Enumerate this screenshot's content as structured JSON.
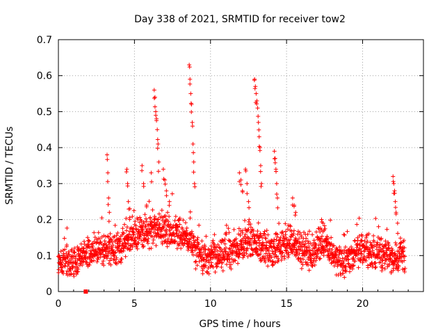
{
  "chart_data": {
    "type": "scatter",
    "title": "Day 338 of 2021, SRMTID for receiver tow2",
    "xlabel": "GPS time / hours",
    "ylabel": "SRMTID / TECUs",
    "xlim": [
      0,
      24
    ],
    "ylim": [
      0,
      0.7
    ],
    "xticks": [
      0,
      5,
      10,
      15,
      20
    ],
    "xtick_labels": [
      "0",
      "5",
      "10",
      "15",
      "20"
    ],
    "yticks": [
      0,
      0.1,
      0.2,
      0.3,
      0.4,
      0.5,
      0.6,
      0.7
    ],
    "ytick_labels": [
      "0",
      "0.1",
      "0.2",
      "0.3",
      "0.4",
      "0.5",
      "0.6",
      "0.7"
    ],
    "grid": true,
    "marker": "plus",
    "color": "#ff0000",
    "series": [
      {
        "name": "SRMTID",
        "baseline_profile": [
          [
            0.0,
            0.082
          ],
          [
            0.5,
            0.085
          ],
          [
            1.0,
            0.075
          ],
          [
            1.5,
            0.095
          ],
          [
            2.0,
            0.105
          ],
          [
            2.5,
            0.115
          ],
          [
            3.0,
            0.11
          ],
          [
            3.5,
            0.125
          ],
          [
            4.0,
            0.12
          ],
          [
            4.5,
            0.14
          ],
          [
            5.0,
            0.155
          ],
          [
            5.5,
            0.165
          ],
          [
            6.0,
            0.16
          ],
          [
            6.5,
            0.18
          ],
          [
            7.0,
            0.17
          ],
          [
            7.5,
            0.165
          ],
          [
            8.0,
            0.16
          ],
          [
            8.5,
            0.15
          ],
          [
            9.0,
            0.11
          ],
          [
            9.5,
            0.095
          ],
          [
            10.0,
            0.09
          ],
          [
            10.5,
            0.095
          ],
          [
            11.0,
            0.1
          ],
          [
            11.5,
            0.11
          ],
          [
            12.0,
            0.13
          ],
          [
            12.5,
            0.14
          ],
          [
            13.0,
            0.13
          ],
          [
            13.5,
            0.12
          ],
          [
            14.0,
            0.11
          ],
          [
            14.5,
            0.12
          ],
          [
            15.0,
            0.13
          ],
          [
            15.5,
            0.14
          ],
          [
            16.0,
            0.11
          ],
          [
            16.5,
            0.1
          ],
          [
            17.0,
            0.12
          ],
          [
            17.5,
            0.14
          ],
          [
            18.0,
            0.1
          ],
          [
            18.5,
            0.085
          ],
          [
            19.0,
            0.09
          ],
          [
            19.5,
            0.105
          ],
          [
            20.0,
            0.12
          ],
          [
            20.5,
            0.1
          ],
          [
            21.0,
            0.11
          ],
          [
            21.5,
            0.1
          ],
          [
            22.0,
            0.09
          ],
          [
            22.5,
            0.11
          ],
          [
            22.8,
            0.09
          ]
        ],
        "peaks": [
          [
            3.2,
            0.38
          ],
          [
            3.25,
            0.33
          ],
          [
            3.3,
            0.26
          ],
          [
            3.35,
            0.22
          ],
          [
            4.5,
            0.34
          ],
          [
            4.55,
            0.3
          ],
          [
            4.6,
            0.25
          ],
          [
            4.7,
            0.23
          ],
          [
            5.5,
            0.35
          ],
          [
            5.6,
            0.3
          ],
          [
            5.8,
            0.24
          ],
          [
            6.1,
            0.33
          ],
          [
            6.3,
            0.56
          ],
          [
            6.35,
            0.54
          ],
          [
            6.4,
            0.5
          ],
          [
            6.45,
            0.48
          ],
          [
            6.5,
            0.45
          ],
          [
            6.55,
            0.41
          ],
          [
            6.6,
            0.36
          ],
          [
            6.9,
            0.34
          ],
          [
            7.0,
            0.31
          ],
          [
            7.1,
            0.28
          ],
          [
            7.3,
            0.25
          ],
          [
            8.6,
            0.63
          ],
          [
            8.65,
            0.59
          ],
          [
            8.7,
            0.55
          ],
          [
            8.75,
            0.52
          ],
          [
            8.8,
            0.47
          ],
          [
            8.85,
            0.41
          ],
          [
            8.9,
            0.36
          ],
          [
            8.95,
            0.3
          ],
          [
            11.9,
            0.33
          ],
          [
            12.0,
            0.31
          ],
          [
            12.1,
            0.28
          ],
          [
            12.3,
            0.34
          ],
          [
            12.4,
            0.3
          ],
          [
            12.5,
            0.25
          ],
          [
            12.9,
            0.59
          ],
          [
            12.95,
            0.57
          ],
          [
            13.0,
            0.55
          ],
          [
            13.05,
            0.53
          ],
          [
            13.1,
            0.51
          ],
          [
            13.15,
            0.47
          ],
          [
            13.2,
            0.43
          ],
          [
            13.25,
            0.4
          ],
          [
            13.3,
            0.35
          ],
          [
            13.35,
            0.3
          ],
          [
            14.2,
            0.39
          ],
          [
            14.25,
            0.37
          ],
          [
            14.3,
            0.34
          ],
          [
            14.35,
            0.3
          ],
          [
            14.4,
            0.26
          ],
          [
            15.4,
            0.26
          ],
          [
            15.5,
            0.24
          ],
          [
            15.6,
            0.22
          ],
          [
            17.3,
            0.2
          ],
          [
            17.4,
            0.19
          ],
          [
            22.0,
            0.32
          ],
          [
            22.05,
            0.3
          ],
          [
            22.1,
            0.28
          ],
          [
            22.15,
            0.25
          ],
          [
            22.2,
            0.22
          ],
          [
            22.3,
            0.19
          ]
        ],
        "special_point": [
          1.8,
          0.0
        ]
      }
    ]
  }
}
